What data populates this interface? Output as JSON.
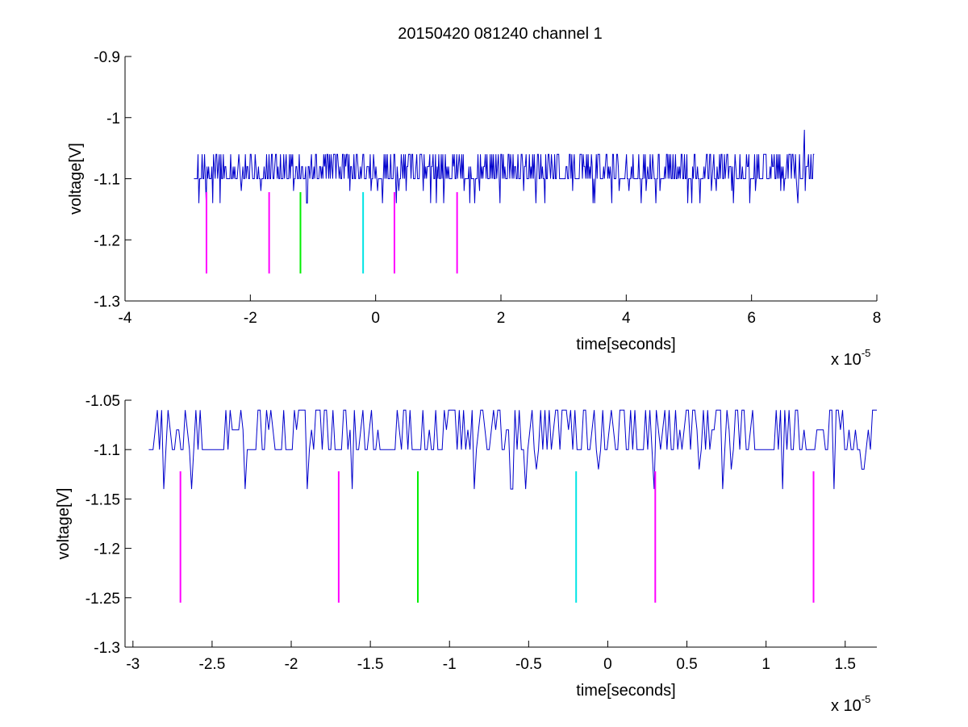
{
  "figure": {
    "title": "20150420 081240 channel 1"
  },
  "chart_data": [
    {
      "type": "line",
      "xlabel": "time[seconds]",
      "ylabel": "voltage[V]",
      "x_multiplier": "x 10",
      "x_exponent": "-5",
      "xlim": [
        -4,
        8
      ],
      "ylim": [
        -1.3,
        -0.9
      ],
      "x_ticks": [
        -4,
        -2,
        0,
        2,
        4,
        6,
        8
      ],
      "x_tick_labels": [
        "-4",
        "-2",
        "0",
        "2",
        "4",
        "6",
        "8"
      ],
      "y_ticks": [
        -1.3,
        -1.2,
        -1.1,
        -1.0,
        -0.9
      ],
      "y_tick_labels": [
        "-1.3",
        "-1.2",
        "-1.1",
        "-1",
        "-0.9"
      ],
      "grid": false,
      "trace": {
        "color": "#0000cc",
        "x_start": -2.9,
        "x_end": 7.0,
        "baseline": -1.1,
        "levels": [
          -1.14,
          -1.12,
          -1.1,
          -1.08,
          -1.06
        ],
        "spike": {
          "x": 6.85,
          "y": -1.02
        }
      },
      "markers": [
        {
          "x": -2.7,
          "y_top": -1.122,
          "y_bottom": -1.255,
          "color": "#ff00ff"
        },
        {
          "x": -1.7,
          "y_top": -1.122,
          "y_bottom": -1.255,
          "color": "#ff00ff"
        },
        {
          "x": -1.2,
          "y_top": -1.122,
          "y_bottom": -1.255,
          "color": "#00ee00"
        },
        {
          "x": -0.2,
          "y_top": -1.122,
          "y_bottom": -1.255,
          "color": "#00e5e5"
        },
        {
          "x": 0.3,
          "y_top": -1.122,
          "y_bottom": -1.255,
          "color": "#ff00ff"
        },
        {
          "x": 1.3,
          "y_top": -1.122,
          "y_bottom": -1.255,
          "color": "#ff00ff"
        }
      ]
    },
    {
      "type": "line",
      "xlabel": "time[seconds]",
      "ylabel": "voltage[V]",
      "x_multiplier": "x 10",
      "x_exponent": "-5",
      "xlim": [
        -3.05,
        1.7
      ],
      "ylim": [
        -1.3,
        -1.05
      ],
      "x_ticks": [
        -3,
        -2.5,
        -2,
        -1.5,
        -1,
        -0.5,
        0,
        0.5,
        1,
        1.5
      ],
      "x_tick_labels": [
        "-3",
        "-2.5",
        "-2",
        "-1.5",
        "-1",
        "-0.5",
        "0",
        "0.5",
        "1",
        "1.5"
      ],
      "y_ticks": [
        -1.3,
        -1.25,
        -1.2,
        -1.15,
        -1.1,
        -1.05
      ],
      "y_tick_labels": [
        "-1.3",
        "-1.25",
        "-1.2",
        "-1.15",
        "-1.1",
        "-1.05"
      ],
      "grid": false,
      "trace": {
        "color": "#0000cc",
        "x_start": -2.9,
        "x_end": 1.7,
        "baseline": -1.1,
        "levels": [
          -1.14,
          -1.12,
          -1.1,
          -1.08,
          -1.06
        ]
      },
      "markers": [
        {
          "x": -2.7,
          "y_top": -1.122,
          "y_bottom": -1.255,
          "color": "#ff00ff"
        },
        {
          "x": -1.7,
          "y_top": -1.122,
          "y_bottom": -1.255,
          "color": "#ff00ff"
        },
        {
          "x": -1.2,
          "y_top": -1.122,
          "y_bottom": -1.255,
          "color": "#00ee00"
        },
        {
          "x": -0.2,
          "y_top": -1.122,
          "y_bottom": -1.255,
          "color": "#00e5e5"
        },
        {
          "x": 0.3,
          "y_top": -1.122,
          "y_bottom": -1.255,
          "color": "#ff00ff"
        },
        {
          "x": 1.3,
          "y_top": -1.122,
          "y_bottom": -1.255,
          "color": "#ff00ff"
        }
      ]
    }
  ]
}
